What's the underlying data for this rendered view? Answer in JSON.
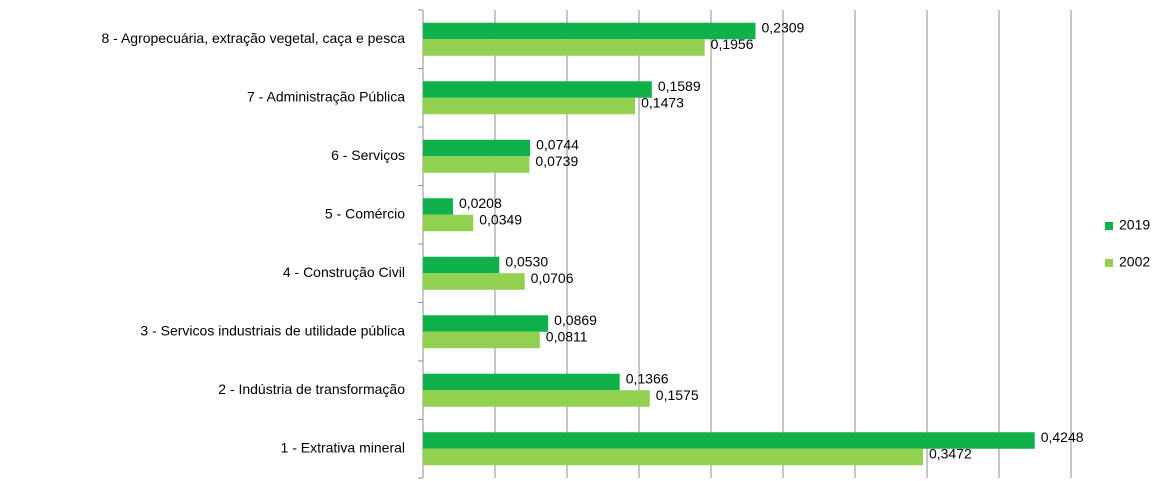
{
  "chart_data": {
    "type": "barh",
    "categories": [
      "8 - Agropecuária, extração vegetal, caça e pesca",
      "7 - Administração Pública",
      "6 - Serviços",
      "5 - Comércio",
      "4 - Construção Civil",
      "3 - Servicos industriais de utilidade pública",
      "2 - Indústria de transformação",
      "1 - Extrativa mineral"
    ],
    "series": [
      {
        "name": "2019",
        "color": "#10b04a",
        "values": [
          0.2309,
          0.1589,
          0.0744,
          0.0208,
          0.053,
          0.0869,
          0.1366,
          0.4248
        ],
        "value_labels": [
          "0,2309",
          "0,1589",
          "0,0744",
          "0,0208",
          "0,0530",
          "0,0869",
          "0,1366",
          "0,4248"
        ]
      },
      {
        "name": "2002",
        "color": "#92d050",
        "values": [
          0.1956,
          0.1473,
          0.0739,
          0.0349,
          0.0706,
          0.0811,
          0.1575,
          0.3472
        ],
        "value_labels": [
          "0,1956",
          "0,1473",
          "0,0739",
          "0,0349",
          "0,0706",
          "0,0811",
          "0,1575",
          "0,3472"
        ]
      }
    ],
    "xlim": [
      0,
      0.45
    ],
    "xticks": [
      0,
      0.05,
      0.1,
      0.15,
      0.2,
      0.25,
      0.3,
      0.35,
      0.4,
      0.45
    ],
    "grid": true,
    "legend": "right"
  }
}
